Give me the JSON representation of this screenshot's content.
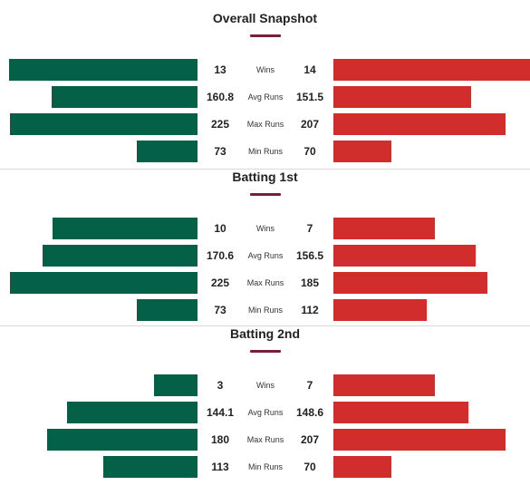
{
  "colors": {
    "team_a": "#046046",
    "team_b": "#d12d2d",
    "title_underline": "#7b1e3a"
  },
  "chart_data": [
    {
      "type": "bar",
      "title": "Overall Snapshot",
      "categories": [
        "Wins",
        "Avg Runs",
        "Max Runs",
        "Min Runs"
      ],
      "series": [
        {
          "values": [
            13,
            160.8,
            225,
            73
          ]
        },
        {
          "values": [
            14,
            151.5,
            207,
            70
          ]
        }
      ]
    },
    {
      "type": "bar",
      "title": "Batting 1st",
      "categories": [
        "Wins",
        "Avg Runs",
        "Max Runs",
        "Min Runs"
      ],
      "series": [
        {
          "values": [
            10,
            170.6,
            225,
            73
          ]
        },
        {
          "values": [
            7,
            156.5,
            185,
            112
          ]
        }
      ]
    },
    {
      "type": "bar",
      "title": "Batting 2nd",
      "categories": [
        "Wins",
        "Avg Runs",
        "Max Runs",
        "Min Runs"
      ],
      "series": [
        {
          "values": [
            3,
            144.1,
            180,
            113
          ]
        },
        {
          "values": [
            7,
            148.6,
            207,
            70
          ]
        }
      ]
    }
  ]
}
